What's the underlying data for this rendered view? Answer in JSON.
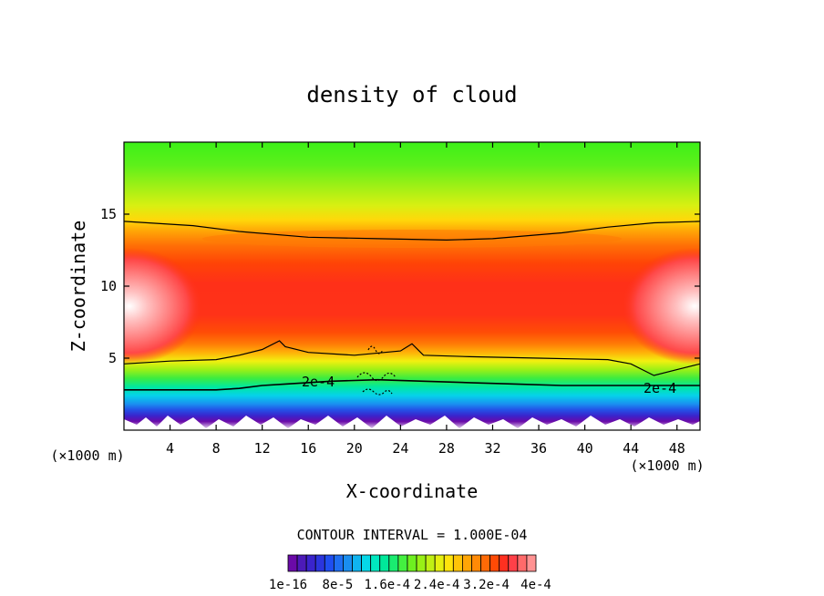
{
  "chart_data": {
    "type": "heatmap",
    "title": "density of cloud",
    "xlabel": "X-coordinate",
    "ylabel": "Z-coordinate",
    "x_unit_left": "(×1000 m)",
    "x_unit_right": "(×1000 m)",
    "xlim": [
      0,
      50
    ],
    "ylim": [
      0,
      20
    ],
    "x_ticks": [
      4,
      8,
      12,
      16,
      20,
      24,
      28,
      32,
      36,
      40,
      44,
      48
    ],
    "y_ticks": [
      5,
      10,
      15
    ],
    "contour_interval_text": "CONTOUR INTERVAL = 1.000E-04",
    "contour_lines": [
      {
        "label": "2e-4",
        "z_profile": [
          [
            0,
            2.8
          ],
          [
            8,
            2.8
          ],
          [
            10,
            2.9
          ],
          [
            12,
            3.1
          ],
          [
            14,
            3.2
          ],
          [
            18,
            3.4
          ],
          [
            22,
            3.5
          ],
          [
            26,
            3.4
          ],
          [
            30,
            3.3
          ],
          [
            34,
            3.2
          ],
          [
            38,
            3.1
          ],
          [
            42,
            3.1
          ],
          [
            46,
            3.1
          ],
          [
            50,
            3.1
          ]
        ]
      },
      {
        "label": "",
        "z_profile": [
          [
            0,
            4.6
          ],
          [
            4,
            4.8
          ],
          [
            8,
            4.9
          ],
          [
            10,
            5.2
          ],
          [
            12,
            5.6
          ],
          [
            13.5,
            6.2
          ],
          [
            14,
            5.8
          ],
          [
            16,
            5.4
          ],
          [
            20,
            5.2
          ],
          [
            24,
            5.5
          ],
          [
            25,
            6.0
          ],
          [
            26,
            5.2
          ],
          [
            30,
            5.1
          ],
          [
            36,
            5.0
          ],
          [
            42,
            4.9
          ],
          [
            44,
            4.6
          ],
          [
            46,
            3.8
          ],
          [
            48,
            4.2
          ],
          [
            50,
            4.6
          ]
        ]
      },
      {
        "label": "",
        "z_profile": [
          [
            0,
            14.5
          ],
          [
            6,
            14.2
          ],
          [
            10,
            13.8
          ],
          [
            16,
            13.4
          ],
          [
            22,
            13.3
          ],
          [
            28,
            13.2
          ],
          [
            32,
            13.3
          ],
          [
            38,
            13.7
          ],
          [
            42,
            14.1
          ],
          [
            46,
            14.4
          ],
          [
            50,
            14.5
          ]
        ]
      }
    ],
    "colorbar": {
      "colors": [
        "#6a0aa8",
        "#4c1ab8",
        "#3a24cc",
        "#2b35dd",
        "#1f4ef0",
        "#1e6ef2",
        "#1a8ef0",
        "#10b4f0",
        "#06d8e8",
        "#00e8c0",
        "#00e89a",
        "#1aec70",
        "#44f040",
        "#6ef020",
        "#98f016",
        "#c0f014",
        "#e6f010",
        "#ffe40c",
        "#ffc408",
        "#ffa606",
        "#ff8a06",
        "#ff6a06",
        "#ff4a06",
        "#ff3020",
        "#ff4048",
        "#ff6a6a",
        "#ff9292"
      ],
      "tick_labels": [
        "1e-16",
        "8e-5",
        "1.6e-4",
        "2.4e-4",
        "3.2e-4",
        "4e-4"
      ]
    }
  }
}
